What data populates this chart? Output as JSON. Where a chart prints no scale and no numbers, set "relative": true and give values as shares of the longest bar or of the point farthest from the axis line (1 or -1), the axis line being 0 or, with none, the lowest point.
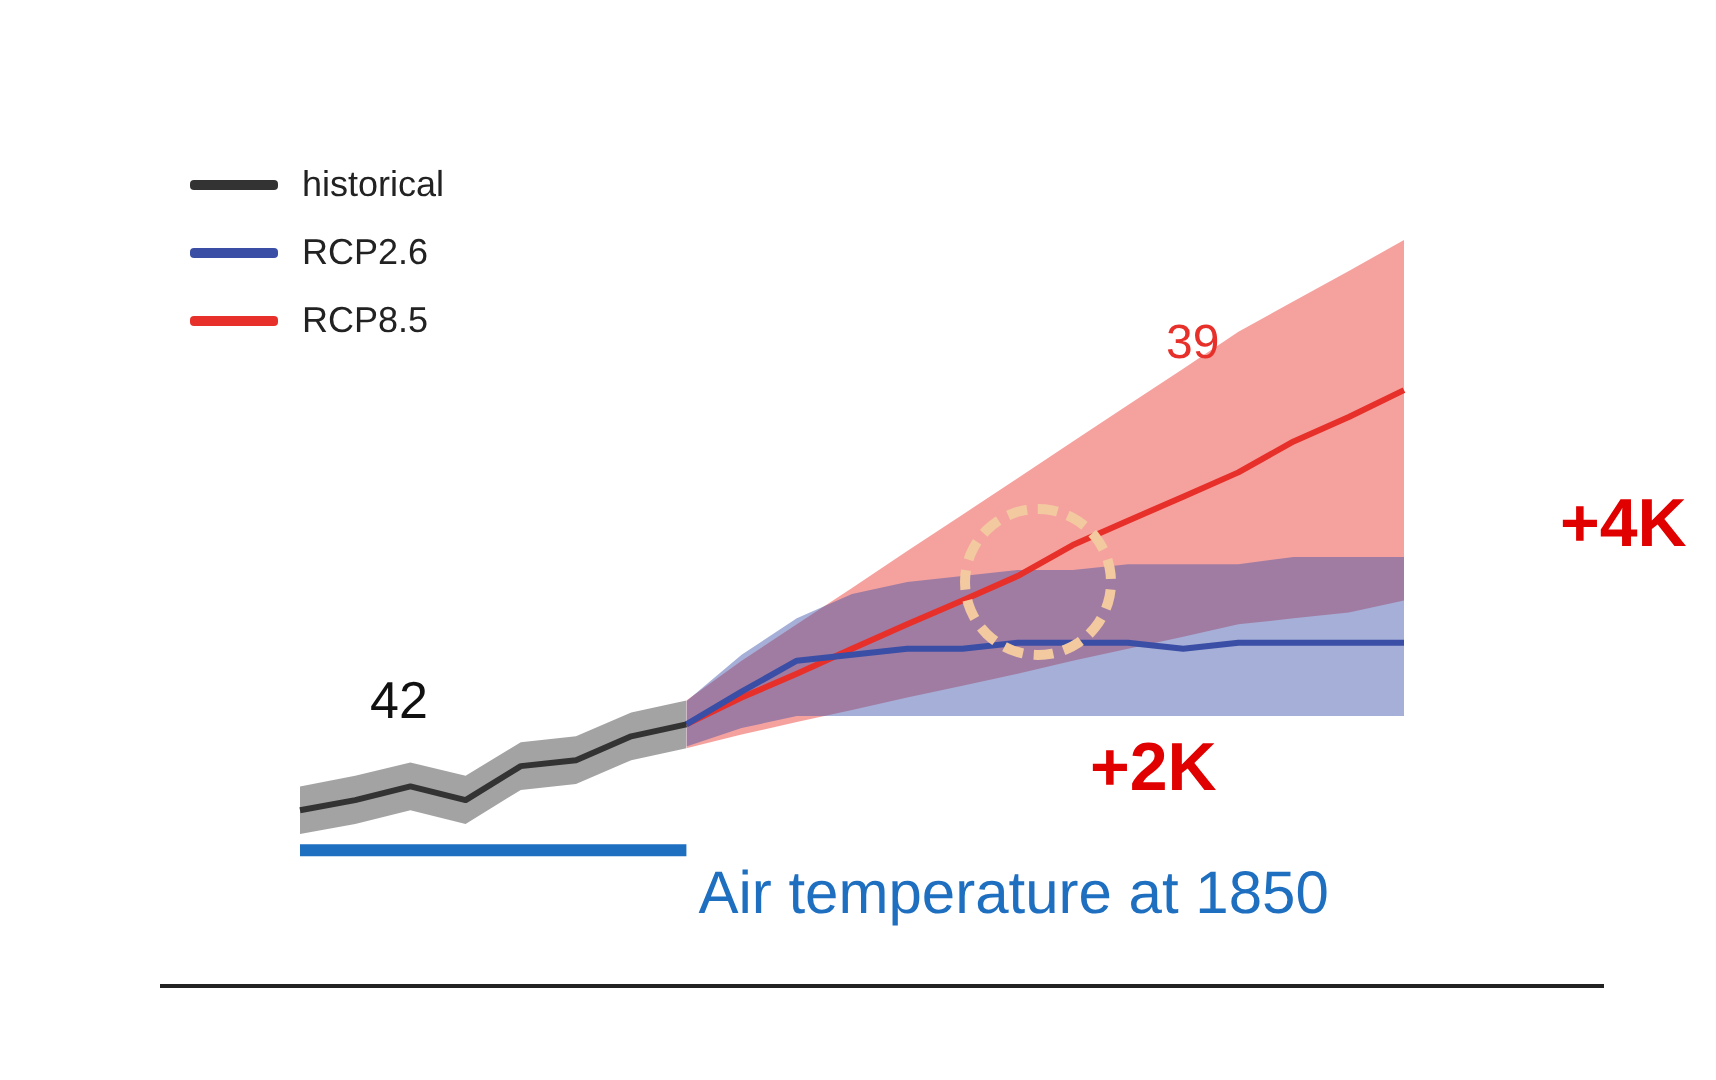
{
  "chart_data": {
    "type": "line",
    "relative": true,
    "categories": [
      null,
      null,
      null,
      null,
      null,
      null,
      null,
      null,
      null,
      null,
      null,
      null,
      null,
      null,
      null,
      null,
      null,
      null,
      null,
      null,
      null
    ],
    "series": [
      {
        "name": "historical",
        "color": "#333333",
        "values": [
          0.295,
          0.312,
          0.335,
          0.312,
          0.369,
          0.379,
          0.419,
          0.439,
          null,
          null,
          null,
          null,
          null,
          null,
          null,
          null,
          null,
          null,
          null,
          null,
          null
        ],
        "lower": [
          0.255,
          0.272,
          0.295,
          0.272,
          0.329,
          0.339,
          0.379,
          0.399,
          null,
          null,
          null,
          null,
          null,
          null,
          null,
          null,
          null,
          null,
          null,
          null,
          null
        ],
        "upper": [
          0.335,
          0.353,
          0.375,
          0.353,
          0.409,
          0.419,
          0.459,
          0.479,
          null,
          null,
          null,
          null,
          null,
          null,
          null,
          null,
          null,
          null,
          null,
          null,
          null
        ]
      },
      {
        "name": "RCP2.6",
        "color": "#3a4ea6",
        "values": [
          null,
          null,
          null,
          null,
          null,
          null,
          null,
          0.439,
          0.494,
          0.546,
          0.556,
          0.566,
          0.566,
          0.576,
          0.576,
          0.576,
          0.566,
          0.576,
          0.576,
          0.576,
          0.576
        ],
        "lower": [
          null,
          null,
          null,
          null,
          null,
          null,
          null,
          0.402,
          0.433,
          0.453,
          0.453,
          0.453,
          0.453,
          0.453,
          0.453,
          0.453,
          0.453,
          0.453,
          0.453,
          0.453,
          0.453
        ],
        "upper": [
          null,
          null,
          null,
          null,
          null,
          null,
          null,
          0.478,
          0.556,
          0.617,
          0.658,
          0.678,
          0.688,
          0.698,
          0.698,
          0.708,
          0.708,
          0.708,
          0.72,
          0.72,
          0.72
        ]
      },
      {
        "name": "RCP8.5",
        "color": "#e8302a",
        "values": [
          null,
          null,
          null,
          null,
          null,
          null,
          null,
          0.439,
          0.484,
          0.524,
          0.566,
          0.607,
          0.647,
          0.688,
          0.74,
          0.781,
          0.821,
          0.862,
          0.914,
          0.955,
          1
        ],
        "lower": [
          null,
          null,
          null,
          null,
          null,
          null,
          null,
          0.399,
          0.422,
          0.443,
          0.463,
          0.484,
          0.504,
          0.524,
          0.546,
          0.566,
          0.586,
          0.607,
          0.617,
          0.627,
          0.647
        ],
        "upper": [
          null,
          null,
          null,
          null,
          null,
          null,
          null,
          0.479,
          0.546,
          0.607,
          0.668,
          0.73,
          0.791,
          0.852,
          0.914,
          0.975,
          1.036,
          1.098,
          1.149,
          1.2,
          1.252
        ]
      }
    ],
    "ref_lines": [
      {
        "axis": "y",
        "value": 0.228,
        "label": "Air temperature at 1850",
        "color": "#1f6fc0"
      }
    ],
    "annotations": [
      "42",
      "39",
      "+2K",
      "+4K"
    ],
    "legend": "top left"
  }
}
